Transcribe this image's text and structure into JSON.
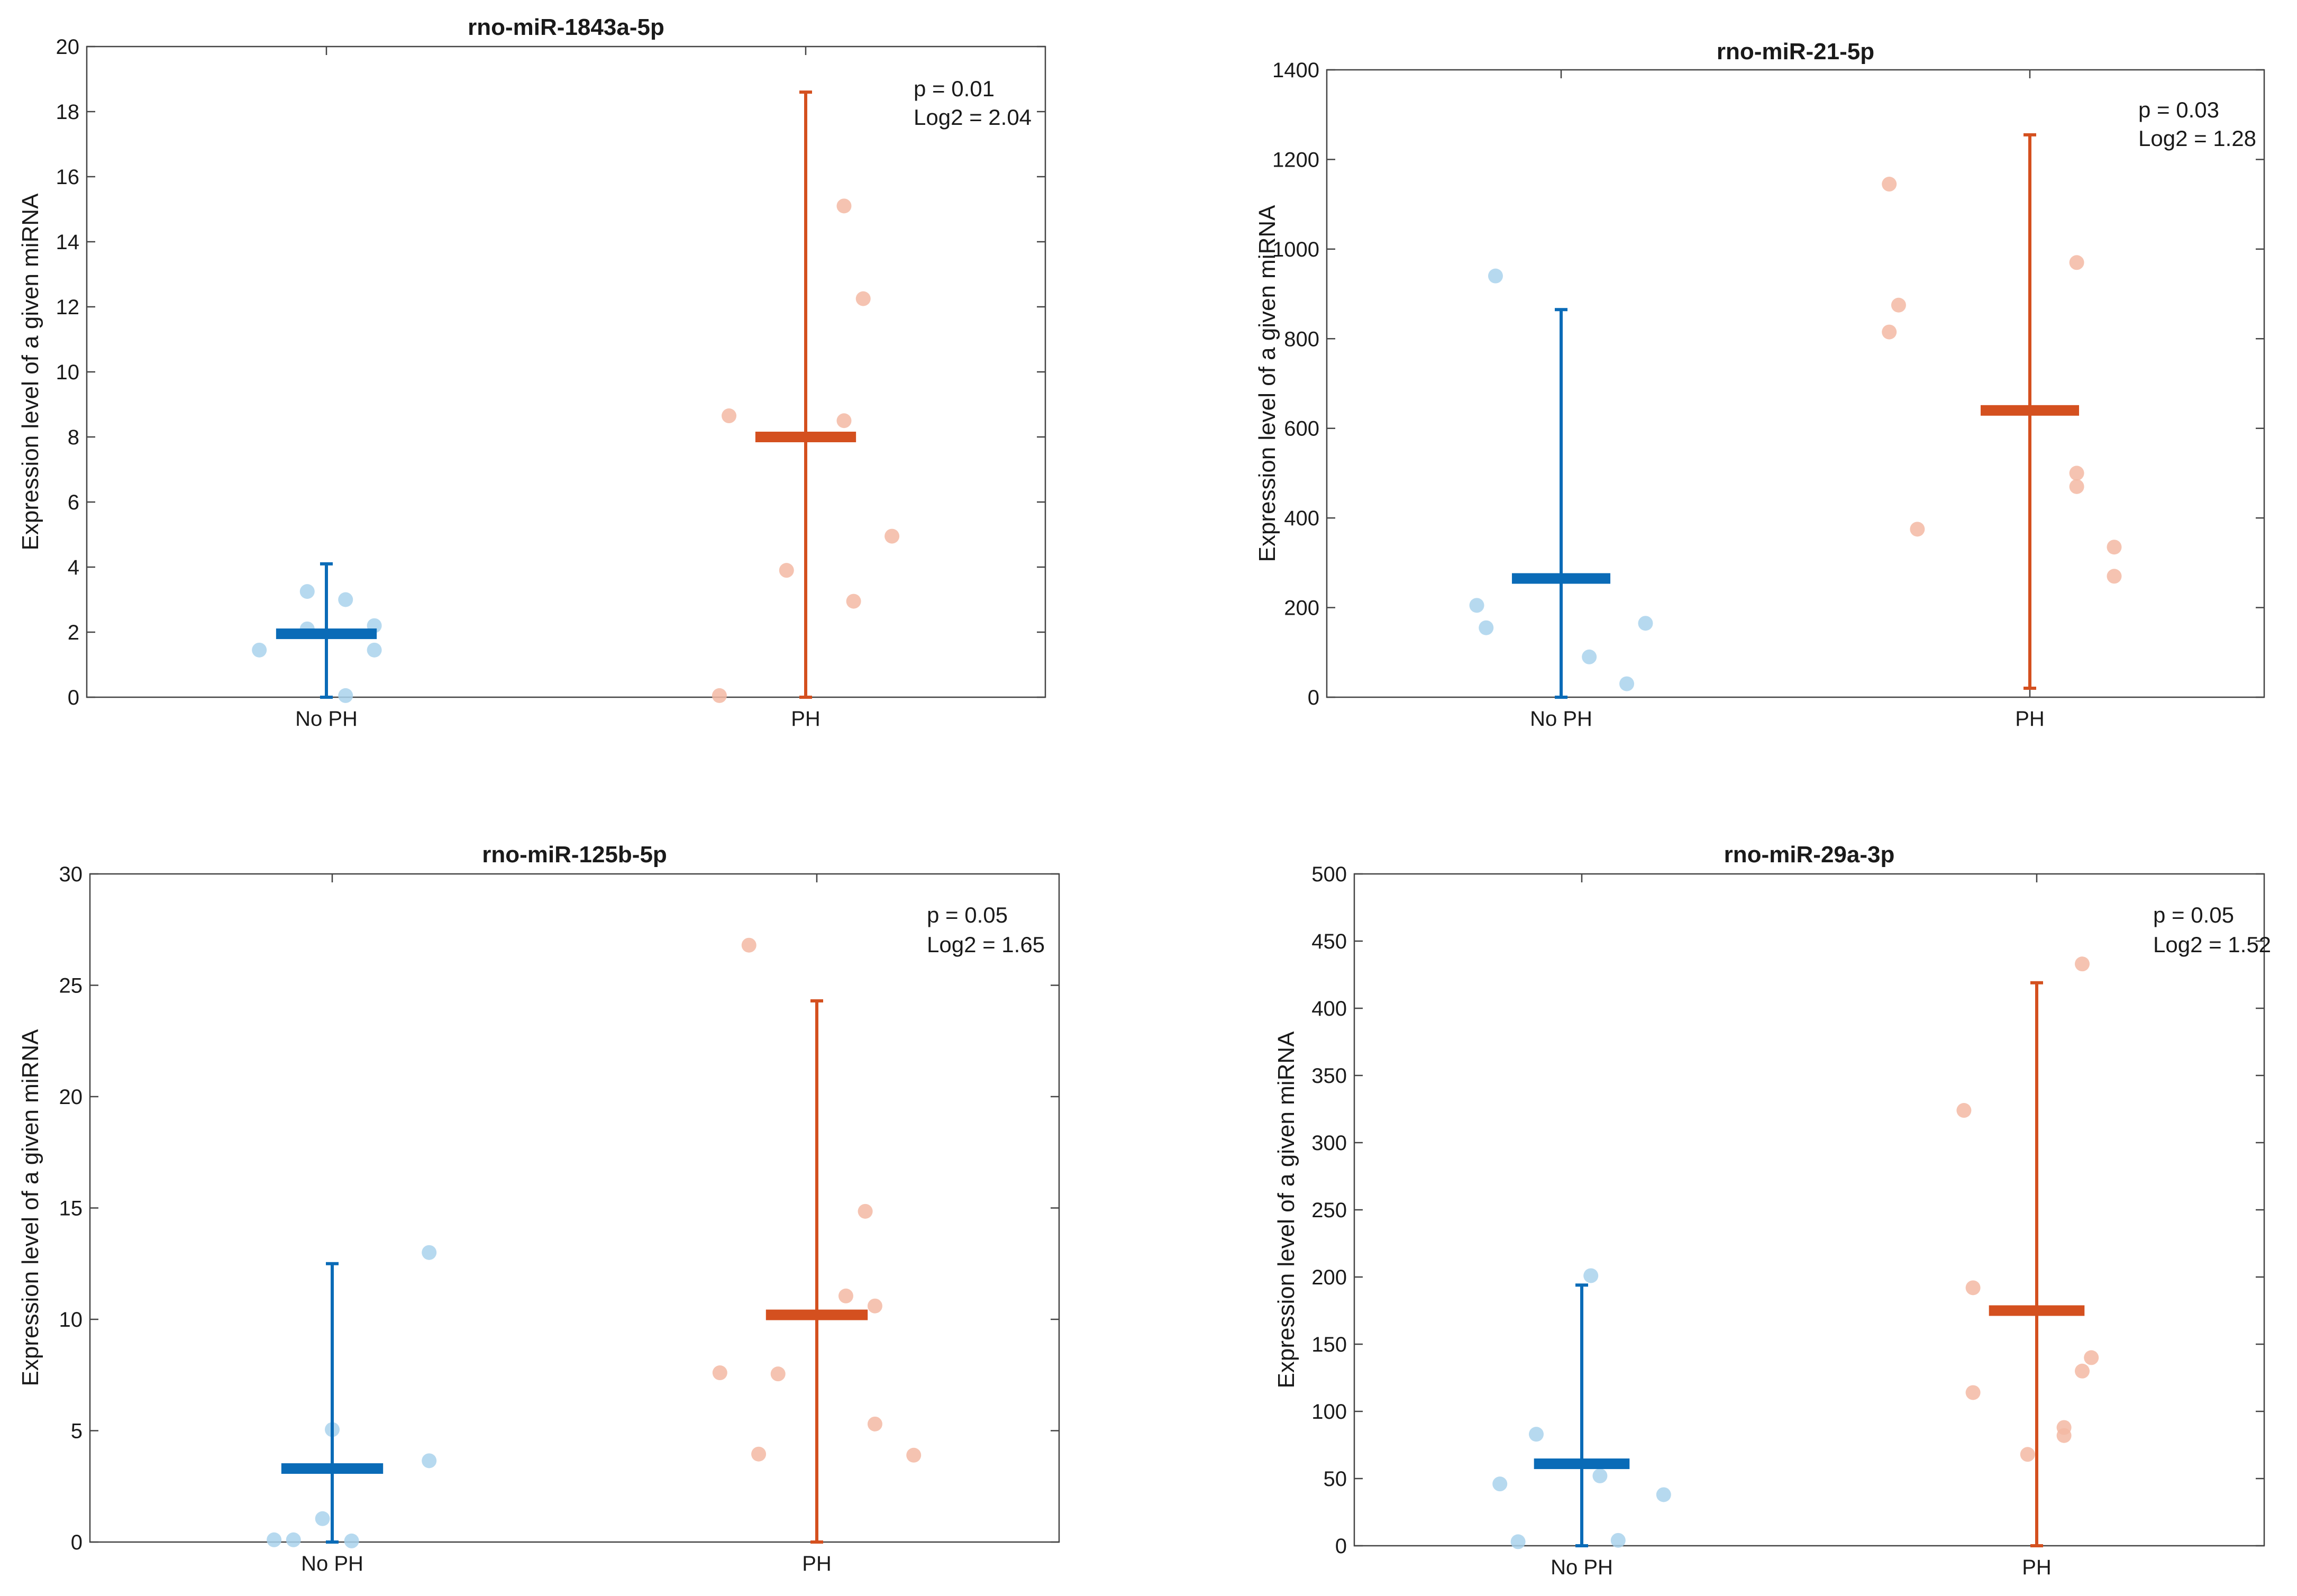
{
  "colors": {
    "nophMean": "#0a6bb7",
    "nophPoint": "#a9d2ec",
    "phMean": "#d4501f",
    "phPoint": "#f3b9a3",
    "axis": "#444444"
  },
  "chart_data": [
    {
      "type": "scatter",
      "title": "rno-miR-1843a-5p",
      "ylabel": "Expression level of a given miRNA",
      "categories": [
        "No PH",
        "PH"
      ],
      "ylim": [
        0,
        20
      ],
      "yticks": [
        0,
        2,
        4,
        6,
        8,
        10,
        12,
        14,
        16,
        18,
        20
      ],
      "annotation": {
        "p": "p = 0.01",
        "log2": "Log2 = 2.04"
      },
      "groups": [
        {
          "name": "No PH",
          "mean": 1.95,
          "err_low": 0,
          "err_high": 4.1,
          "points": [
            [
              -0.07,
              1.45
            ],
            [
              -0.02,
              3.25
            ],
            [
              0.02,
              3.0
            ],
            [
              -0.02,
              2.1
            ],
            [
              0.05,
              2.2
            ],
            [
              0.05,
              1.45
            ],
            [
              0.02,
              0.05
            ]
          ]
        },
        {
          "name": "PH",
          "mean": 8.0,
          "err_low": 0,
          "err_high": 18.6,
          "points": [
            [
              -0.08,
              8.65
            ],
            [
              -0.02,
              3.9
            ],
            [
              0.04,
              15.1
            ],
            [
              0.06,
              12.25
            ],
            [
              0.04,
              8.5
            ],
            [
              0.09,
              4.95
            ],
            [
              0.05,
              2.95
            ],
            [
              -0.09,
              0.05
            ]
          ]
        }
      ]
    },
    {
      "type": "scatter",
      "title": "rno-miR-21-5p",
      "ylabel": "Expression level of a given miRNA",
      "categories": [
        "No PH",
        "PH"
      ],
      "ylim": [
        0,
        1400
      ],
      "yticks": [
        0,
        200,
        400,
        600,
        800,
        1000,
        1200,
        1400
      ],
      "annotation": {
        "p": "p = 0.03",
        "log2": "Log2 = 1.28"
      },
      "groups": [
        {
          "name": "No PH",
          "mean": 265,
          "err_low": 0,
          "err_high": 865,
          "points": [
            [
              -0.07,
              940
            ],
            [
              -0.09,
              205
            ],
            [
              -0.08,
              155
            ],
            [
              0.03,
              90
            ],
            [
              0.09,
              165
            ],
            [
              0.07,
              30
            ]
          ]
        },
        {
          "name": "PH",
          "mean": 640,
          "err_low": 20,
          "err_high": 1255,
          "points": [
            [
              -0.15,
              1145
            ],
            [
              -0.14,
              875
            ],
            [
              -0.15,
              815
            ],
            [
              0.05,
              970
            ],
            [
              -0.12,
              375
            ],
            [
              0.05,
              500
            ],
            [
              0.05,
              470
            ],
            [
              0.09,
              335
            ],
            [
              0.09,
              270
            ]
          ]
        }
      ]
    },
    {
      "type": "scatter",
      "title": "rno-miR-125b-5p",
      "ylabel": "Expression level of a given miRNA",
      "categories": [
        "No PH",
        "PH"
      ],
      "ylim": [
        0,
        30
      ],
      "yticks": [
        0,
        5,
        10,
        15,
        20,
        25,
        30
      ],
      "annotation": {
        "p": "p = 0.05",
        "log2": "Log2 = 1.65"
      },
      "groups": [
        {
          "name": "No PH",
          "mean": 3.3,
          "err_low": 0,
          "err_high": 12.5,
          "points": [
            [
              0.1,
              13.0
            ],
            [
              0.0,
              5.05
            ],
            [
              0.1,
              3.65
            ],
            [
              -0.01,
              1.05
            ],
            [
              -0.06,
              0.1
            ],
            [
              -0.04,
              0.1
            ],
            [
              0.02,
              0.05
            ]
          ]
        },
        {
          "name": "PH",
          "mean": 10.2,
          "err_low": 0,
          "err_high": 24.3,
          "points": [
            [
              -0.07,
              26.8
            ],
            [
              0.05,
              14.85
            ],
            [
              0.03,
              11.05
            ],
            [
              0.06,
              10.6
            ],
            [
              -0.1,
              7.6
            ],
            [
              -0.04,
              7.55
            ],
            [
              0.06,
              5.3
            ],
            [
              -0.06,
              3.95
            ],
            [
              0.1,
              3.9
            ]
          ]
        }
      ]
    },
    {
      "type": "scatter",
      "title": "rno-miR-29a-3p",
      "ylabel": "Expression level of a given miRNA",
      "categories": [
        "No PH",
        "PH"
      ],
      "ylim": [
        0,
        500
      ],
      "yticks": [
        0,
        50,
        100,
        150,
        200,
        250,
        300,
        350,
        400,
        450,
        500
      ],
      "annotation": {
        "p": "p = 0.05",
        "log2": "Log2 = 1.52"
      },
      "groups": [
        {
          "name": "No PH",
          "mean": 61,
          "err_low": 0,
          "err_high": 194,
          "points": [
            [
              0.01,
              201
            ],
            [
              -0.05,
              83
            ],
            [
              -0.09,
              46
            ],
            [
              0.02,
              52
            ],
            [
              0.09,
              38
            ],
            [
              -0.07,
              3
            ],
            [
              0.04,
              4
            ]
          ]
        },
        {
          "name": "PH",
          "mean": 175,
          "err_low": 0,
          "err_high": 419,
          "points": [
            [
              0.05,
              433
            ],
            [
              -0.08,
              324
            ],
            [
              -0.07,
              192
            ],
            [
              -0.07,
              114
            ],
            [
              0.06,
              140
            ],
            [
              0.05,
              130
            ],
            [
              0.03,
              88
            ],
            [
              0.03,
              82
            ],
            [
              -0.01,
              68
            ]
          ]
        }
      ]
    }
  ]
}
